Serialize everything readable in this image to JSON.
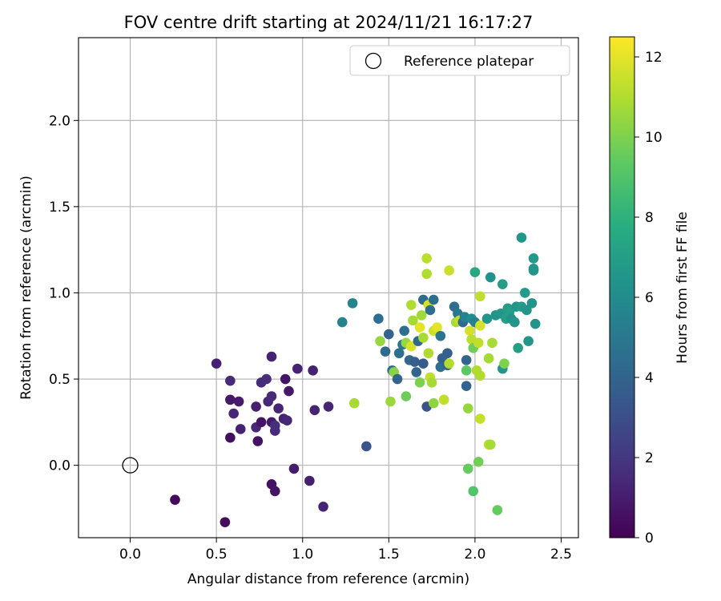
{
  "chart_data": {
    "type": "scatter",
    "title": "FOV centre drift starting at 2024/11/21 16:17:27",
    "xlabel": "Angular distance from reference (arcmin)",
    "ylabel": "Rotation from reference (arcmin)",
    "xlim": [
      -0.3,
      2.6
    ],
    "ylim": [
      -0.42,
      2.48
    ],
    "xticks": [
      "0.0",
      "0.5",
      "1.0",
      "1.5",
      "2.0",
      "2.5"
    ],
    "yticks": [
      "0.0",
      "0.5",
      "1.0",
      "1.5",
      "2.0"
    ],
    "xtick_values": [
      0.0,
      0.5,
      1.0,
      1.5,
      2.0,
      2.5
    ],
    "ytick_values": [
      0.0,
      0.5,
      1.0,
      1.5,
      2.0
    ],
    "grid": true,
    "legend": {
      "placement": "top-right",
      "label": "Reference platepar"
    },
    "reference_point": {
      "x": 0.0,
      "y": 0.0
    },
    "colorbar": {
      "label": "Hours from first FF file",
      "range": [
        0,
        12.5
      ],
      "ticks": [
        "0",
        "2",
        "4",
        "6",
        "8",
        "10",
        "12"
      ],
      "tick_values": [
        0,
        2,
        4,
        6,
        8,
        10,
        12
      ],
      "colormap": "viridis"
    },
    "points": [
      {
        "x": 0.26,
        "y": -0.2,
        "h": 0.3
      },
      {
        "x": 0.55,
        "y": -0.33,
        "h": 0.4
      },
      {
        "x": 0.5,
        "y": 0.59,
        "h": 1.2
      },
      {
        "x": 0.58,
        "y": 0.38,
        "h": 0.8
      },
      {
        "x": 0.58,
        "y": 0.16,
        "h": 0.5
      },
      {
        "x": 0.58,
        "y": 0.49,
        "h": 1.5
      },
      {
        "x": 0.6,
        "y": 0.3,
        "h": 1.4
      },
      {
        "x": 0.63,
        "y": 0.37,
        "h": 1.0
      },
      {
        "x": 0.64,
        "y": 0.21,
        "h": 1.2
      },
      {
        "x": 0.73,
        "y": 0.34,
        "h": 1.1
      },
      {
        "x": 0.73,
        "y": 0.22,
        "h": 1.4
      },
      {
        "x": 0.74,
        "y": 0.14,
        "h": 0.6
      },
      {
        "x": 0.76,
        "y": 0.25,
        "h": 0.7
      },
      {
        "x": 0.76,
        "y": 0.48,
        "h": 1.5
      },
      {
        "x": 0.79,
        "y": 0.5,
        "h": 1.6
      },
      {
        "x": 0.8,
        "y": 0.37,
        "h": 1.4
      },
      {
        "x": 0.82,
        "y": 0.4,
        "h": 1.5
      },
      {
        "x": 0.82,
        "y": 0.25,
        "h": 0.9
      },
      {
        "x": 0.82,
        "y": 0.63,
        "h": 1.2
      },
      {
        "x": 0.82,
        "y": -0.11,
        "h": 0.6
      },
      {
        "x": 0.84,
        "y": 0.2,
        "h": 1.5
      },
      {
        "x": 0.84,
        "y": 0.23,
        "h": 1.7
      },
      {
        "x": 0.84,
        "y": -0.15,
        "h": 0.7
      },
      {
        "x": 0.86,
        "y": 0.33,
        "h": 1.3
      },
      {
        "x": 0.89,
        "y": 0.27,
        "h": 1.3
      },
      {
        "x": 0.9,
        "y": 0.5,
        "h": 0.7
      },
      {
        "x": 0.91,
        "y": 0.26,
        "h": 1.4
      },
      {
        "x": 0.92,
        "y": 0.43,
        "h": 0.8
      },
      {
        "x": 0.95,
        "y": -0.02,
        "h": 1.0
      },
      {
        "x": 0.97,
        "y": 0.56,
        "h": 1.2
      },
      {
        "x": 1.04,
        "y": -0.09,
        "h": 1.1
      },
      {
        "x": 1.06,
        "y": 0.55,
        "h": 1.2
      },
      {
        "x": 1.07,
        "y": 0.32,
        "h": 1.3
      },
      {
        "x": 1.12,
        "y": -0.24,
        "h": 1.3
      },
      {
        "x": 1.15,
        "y": 0.34,
        "h": 1.3
      },
      {
        "x": 1.23,
        "y": 0.83,
        "h": 5.5
      },
      {
        "x": 1.29,
        "y": 0.94,
        "h": 5.6
      },
      {
        "x": 1.3,
        "y": 0.36,
        "h": 10.8
      },
      {
        "x": 1.37,
        "y": 0.11,
        "h": 3.2
      },
      {
        "x": 1.44,
        "y": 0.85,
        "h": 4.5
      },
      {
        "x": 1.45,
        "y": 0.72,
        "h": 10.5
      },
      {
        "x": 1.48,
        "y": 0.66,
        "h": 4.3
      },
      {
        "x": 1.5,
        "y": 0.76,
        "h": 4.0
      },
      {
        "x": 1.51,
        "y": 0.37,
        "h": 10.6
      },
      {
        "x": 1.52,
        "y": 0.55,
        "h": 4.5
      },
      {
        "x": 1.53,
        "y": 0.54,
        "h": 10.2
      },
      {
        "x": 1.55,
        "y": 0.5,
        "h": 4.0
      },
      {
        "x": 1.56,
        "y": 0.65,
        "h": 4.5
      },
      {
        "x": 1.58,
        "y": 0.7,
        "h": 5.0
      },
      {
        "x": 1.59,
        "y": 0.78,
        "h": 4.5
      },
      {
        "x": 1.6,
        "y": 0.71,
        "h": 10.5
      },
      {
        "x": 1.6,
        "y": 0.4,
        "h": 9.7
      },
      {
        "x": 1.62,
        "y": 0.61,
        "h": 4.2
      },
      {
        "x": 1.63,
        "y": 0.93,
        "h": 11.0
      },
      {
        "x": 1.63,
        "y": 0.69,
        "h": 11.8
      },
      {
        "x": 1.64,
        "y": 0.84,
        "h": 10.8
      },
      {
        "x": 1.65,
        "y": 0.6,
        "h": 3.8
      },
      {
        "x": 1.66,
        "y": 0.54,
        "h": 4.0
      },
      {
        "x": 1.67,
        "y": 0.72,
        "h": 4.2
      },
      {
        "x": 1.68,
        "y": 0.8,
        "h": 12.0
      },
      {
        "x": 1.68,
        "y": 0.48,
        "h": 10.0
      },
      {
        "x": 1.69,
        "y": 0.87,
        "h": 10.7
      },
      {
        "x": 1.7,
        "y": 0.96,
        "h": 4.3
      },
      {
        "x": 1.7,
        "y": 0.74,
        "h": 10.8
      },
      {
        "x": 1.7,
        "y": 0.59,
        "h": 3.5
      },
      {
        "x": 1.72,
        "y": 1.2,
        "h": 11.2
      },
      {
        "x": 1.72,
        "y": 1.11,
        "h": 11.0
      },
      {
        "x": 1.72,
        "y": 0.34,
        "h": 3.2
      },
      {
        "x": 1.73,
        "y": 0.93,
        "h": 11.8
      },
      {
        "x": 1.73,
        "y": 0.65,
        "h": 11.0
      },
      {
        "x": 1.74,
        "y": 0.51,
        "h": 11.3
      },
      {
        "x": 1.74,
        "y": 0.9,
        "h": 4.5
      },
      {
        "x": 1.75,
        "y": 0.48,
        "h": 10.8
      },
      {
        "x": 1.76,
        "y": 0.96,
        "h": 4.6
      },
      {
        "x": 1.76,
        "y": 0.78,
        "h": 11.5
      },
      {
        "x": 1.76,
        "y": 0.36,
        "h": 10.3
      },
      {
        "x": 1.78,
        "y": 0.8,
        "h": 12.0
      },
      {
        "x": 1.8,
        "y": 0.57,
        "h": 4.5
      },
      {
        "x": 1.8,
        "y": 0.75,
        "h": 4.8
      },
      {
        "x": 1.81,
        "y": 0.62,
        "h": 3.8
      },
      {
        "x": 1.82,
        "y": 0.38,
        "h": 11.3
      },
      {
        "x": 1.84,
        "y": 0.58,
        "h": 4.0
      },
      {
        "x": 1.84,
        "y": 0.65,
        "h": 3.8
      },
      {
        "x": 1.85,
        "y": 1.13,
        "h": 11.5
      },
      {
        "x": 1.85,
        "y": 0.59,
        "h": 11.0
      },
      {
        "x": 1.88,
        "y": 0.92,
        "h": 4.5
      },
      {
        "x": 1.89,
        "y": 0.83,
        "h": 10.8
      },
      {
        "x": 1.9,
        "y": 0.88,
        "h": 5.0
      },
      {
        "x": 1.91,
        "y": 0.84,
        "h": 11.3
      },
      {
        "x": 1.93,
        "y": 0.83,
        "h": 4.3
      },
      {
        "x": 1.94,
        "y": 0.86,
        "h": 5.5
      },
      {
        "x": 1.95,
        "y": 0.46,
        "h": 4.0
      },
      {
        "x": 1.95,
        "y": 0.55,
        "h": 9.3
      },
      {
        "x": 1.95,
        "y": 0.61,
        "h": 4.0
      },
      {
        "x": 1.96,
        "y": 0.33,
        "h": 10.5
      },
      {
        "x": 1.96,
        "y": -0.02,
        "h": 9.5
      },
      {
        "x": 1.97,
        "y": 0.78,
        "h": 11.7
      },
      {
        "x": 1.98,
        "y": 0.85,
        "h": 6.0
      },
      {
        "x": 1.98,
        "y": 0.73,
        "h": 11.2
      },
      {
        "x": 1.99,
        "y": 0.68,
        "h": 9.7
      },
      {
        "x": 1.99,
        "y": -0.15,
        "h": 9.0
      },
      {
        "x": 2.0,
        "y": 1.12,
        "h": 7.5
      },
      {
        "x": 2.0,
        "y": 0.83,
        "h": 5.5
      },
      {
        "x": 2.01,
        "y": 0.55,
        "h": 11.0
      },
      {
        "x": 2.02,
        "y": 0.71,
        "h": 11.3
      },
      {
        "x": 2.02,
        "y": 0.02,
        "h": 9.8
      },
      {
        "x": 2.03,
        "y": 0.98,
        "h": 11.3
      },
      {
        "x": 2.03,
        "y": 0.81,
        "h": 11.8
      },
      {
        "x": 2.03,
        "y": 0.52,
        "h": 11.0
      },
      {
        "x": 2.03,
        "y": 0.27,
        "h": 11.4
      },
      {
        "x": 2.07,
        "y": 0.85,
        "h": 6.5
      },
      {
        "x": 2.08,
        "y": 0.12,
        "h": 11.3
      },
      {
        "x": 2.08,
        "y": 0.62,
        "h": 10.8
      },
      {
        "x": 2.09,
        "y": 1.09,
        "h": 6.3
      },
      {
        "x": 2.09,
        "y": 0.12,
        "h": 10.8
      },
      {
        "x": 2.1,
        "y": 0.71,
        "h": 10.8
      },
      {
        "x": 2.12,
        "y": 0.87,
        "h": 6.4
      },
      {
        "x": 2.13,
        "y": -0.26,
        "h": 9.5
      },
      {
        "x": 2.15,
        "y": 0.88,
        "h": 6.5
      },
      {
        "x": 2.16,
        "y": 1.05,
        "h": 7.0
      },
      {
        "x": 2.16,
        "y": 0.56,
        "h": 6.5
      },
      {
        "x": 2.17,
        "y": 0.59,
        "h": 10.0
      },
      {
        "x": 2.18,
        "y": 0.85,
        "h": 7.0
      },
      {
        "x": 2.19,
        "y": 0.91,
        "h": 6.8
      },
      {
        "x": 2.2,
        "y": 0.89,
        "h": 7.0
      },
      {
        "x": 2.21,
        "y": 0.85,
        "h": 6.3
      },
      {
        "x": 2.23,
        "y": 0.83,
        "h": 6.5
      },
      {
        "x": 2.24,
        "y": 0.92,
        "h": 6.5
      },
      {
        "x": 2.25,
        "y": 0.68,
        "h": 7.0
      },
      {
        "x": 2.27,
        "y": 0.92,
        "h": 6.8
      },
      {
        "x": 2.27,
        "y": 1.32,
        "h": 6.5
      },
      {
        "x": 2.29,
        "y": 1.0,
        "h": 6.8
      },
      {
        "x": 2.3,
        "y": 0.9,
        "h": 6.5
      },
      {
        "x": 2.31,
        "y": 0.72,
        "h": 6.5
      },
      {
        "x": 2.33,
        "y": 0.94,
        "h": 6.4
      },
      {
        "x": 2.34,
        "y": 1.14,
        "h": 6.5
      },
      {
        "x": 2.34,
        "y": 1.2,
        "h": 6.7
      },
      {
        "x": 2.34,
        "y": 1.13,
        "h": 6.5
      },
      {
        "x": 2.35,
        "y": 0.82,
        "h": 6.4
      }
    ]
  }
}
